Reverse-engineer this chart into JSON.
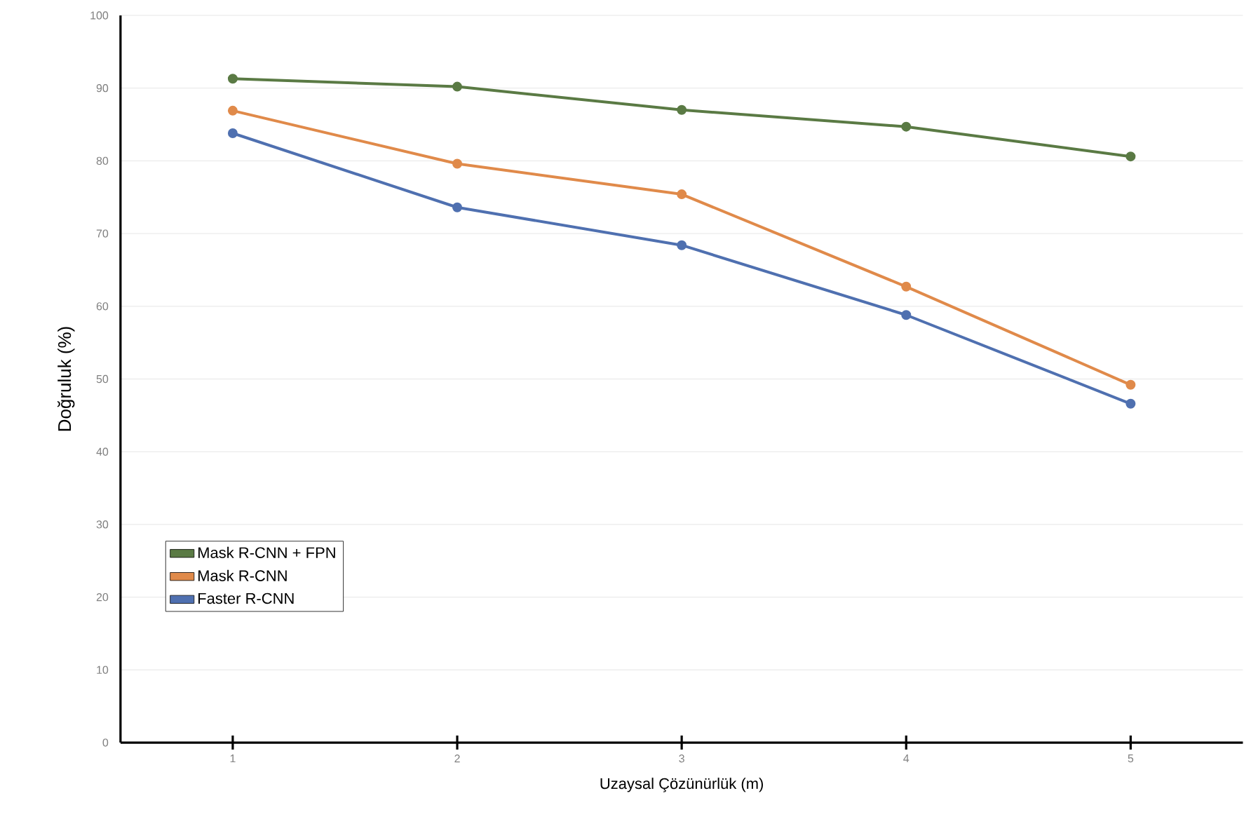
{
  "chart_data": {
    "type": "line",
    "xlabel": "Uzaysal Çözünürlük (m)",
    "ylabel": "Doğruluk (%)",
    "x": [
      1,
      2,
      3,
      4,
      5
    ],
    "xlim": [
      0.5,
      5.5
    ],
    "xticks": [
      1,
      2,
      3,
      4,
      5
    ],
    "ylim": [
      0,
      100
    ],
    "yticks": [
      0,
      10,
      20,
      30,
      40,
      50,
      60,
      70,
      80,
      90,
      100
    ],
    "grid": "y",
    "legend": "bottom left",
    "marker": "circle",
    "line_style": "solid",
    "series": [
      {
        "name": "Mask R-CNN + FPN",
        "color": "#5a7a44",
        "values": [
          91.3,
          90.2,
          87.0,
          84.7,
          80.6
        ]
      },
      {
        "name": "Mask R-CNN",
        "color": "#e08a4a",
        "values": [
          86.9,
          79.6,
          75.4,
          62.7,
          49.2
        ]
      },
      {
        "name": "Faster R-CNN",
        "color": "#4f70b0",
        "values": [
          83.8,
          73.6,
          68.4,
          58.8,
          46.6
        ]
      }
    ]
  }
}
